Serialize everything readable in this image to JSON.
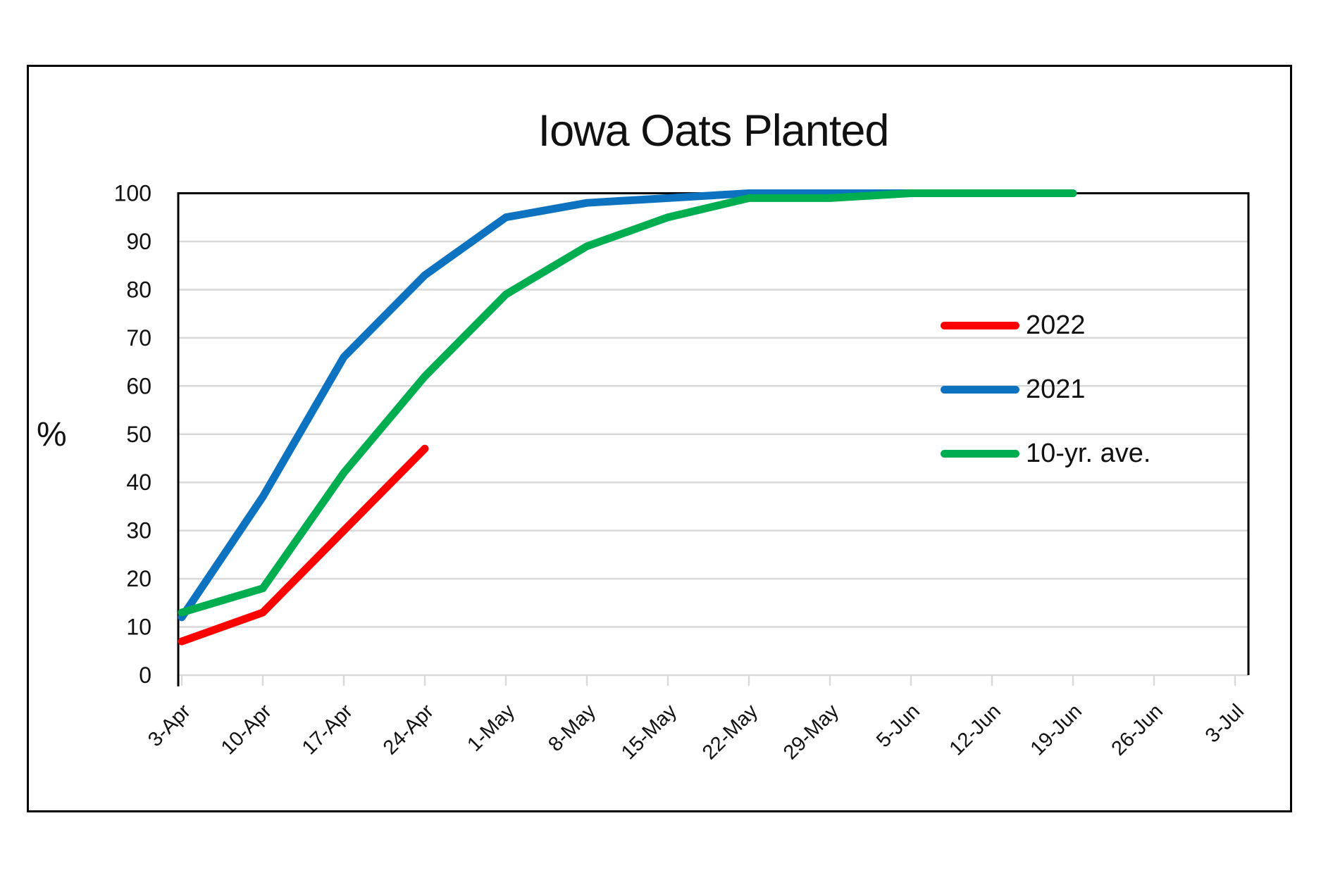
{
  "chart": {
    "title": "Iowa Oats Planted",
    "y_axis_unit": "%"
  },
  "chart_data": {
    "type": "line",
    "title": "Iowa Oats Planted",
    "xlabel": "",
    "ylabel": "%",
    "ylim": [
      0,
      100
    ],
    "y_ticks": [
      0,
      10,
      20,
      30,
      40,
      50,
      60,
      70,
      80,
      90,
      100
    ],
    "grid": "horizontal",
    "gridline_color": "#D9D9D9",
    "legend_position": "middle-right-inside",
    "categories": [
      "3-Apr",
      "10-Apr",
      "17-Apr",
      "24-Apr",
      "1-May",
      "8-May",
      "15-May",
      "22-May",
      "29-May",
      "5-Jun",
      "12-Jun",
      "19-Jun",
      "26-Jun",
      "3-Jul"
    ],
    "series": [
      {
        "name": "2022",
        "color": "#FF0000",
        "values": [
          7,
          13,
          30,
          47
        ]
      },
      {
        "name": "2021",
        "color": "#0D72C0",
        "values": [
          12,
          37,
          66,
          83,
          95,
          98,
          99,
          100,
          100,
          100,
          100,
          100
        ]
      },
      {
        "name": "10-yr. ave.",
        "color": "#00AE50",
        "values": [
          13,
          18,
          42,
          62,
          79,
          89,
          95,
          99,
          99,
          100,
          100,
          100
        ]
      }
    ]
  }
}
